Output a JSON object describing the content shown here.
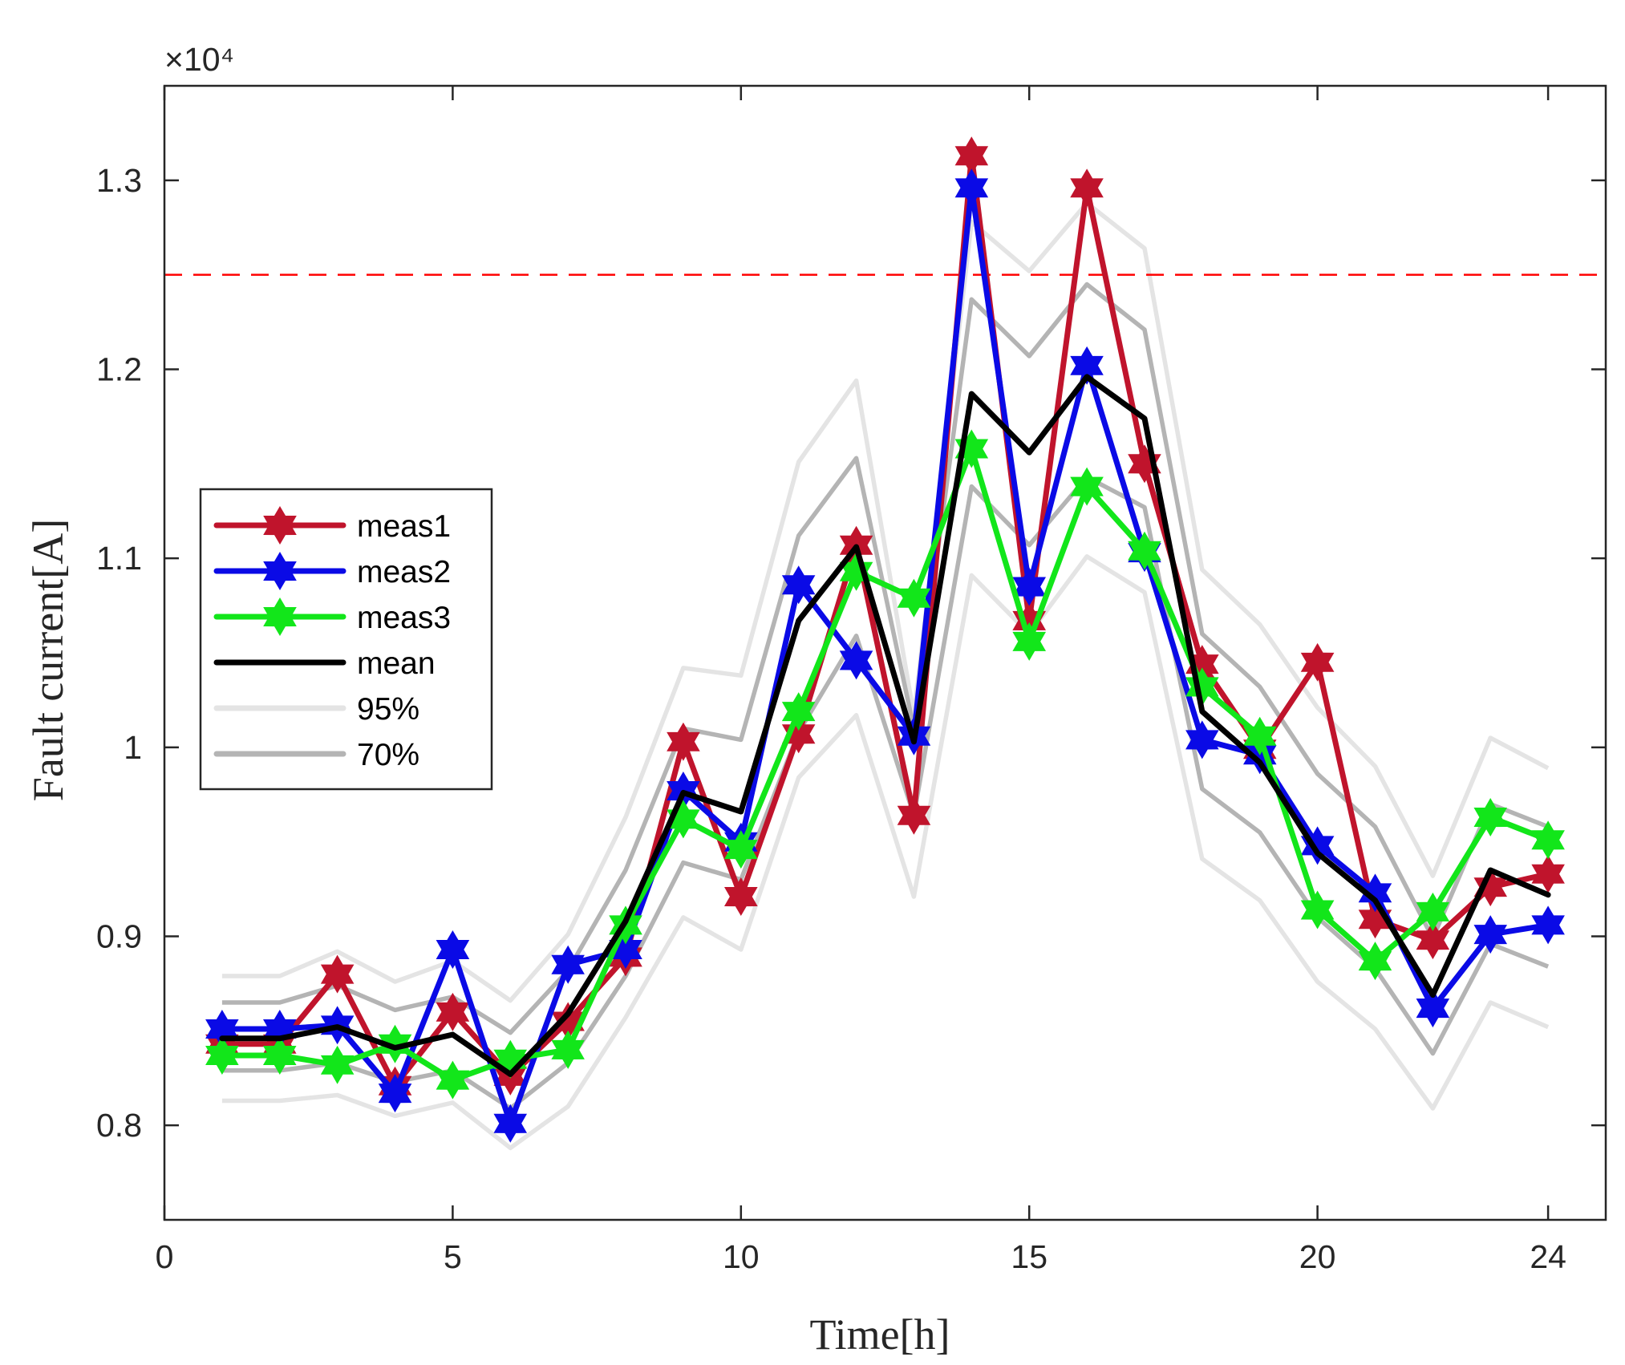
{
  "chart_data": {
    "type": "line",
    "xlabel": "Time[h]",
    "ylabel": "Fault current[A]",
    "y_exponent_label": "×10⁴",
    "xlim": [
      0,
      25
    ],
    "ylim": [
      7500,
      13500
    ],
    "xticks": [
      0,
      5,
      10,
      15,
      20,
      24
    ],
    "yticks": [
      8000,
      9000,
      10000,
      11000,
      12000,
      13000
    ],
    "ytick_labels": [
      "0.8",
      "0.9",
      "1",
      "1.1",
      "1.2",
      "1.3"
    ],
    "threshold": 12500,
    "x": [
      1,
      2,
      3,
      4,
      5,
      6,
      7,
      8,
      9,
      10,
      11,
      12,
      13,
      14,
      15,
      16,
      17,
      18,
      19,
      20,
      21,
      22,
      23,
      24
    ],
    "series": [
      {
        "name": "95%",
        "role": "band-upper",
        "color": "#e4e4e4",
        "values": [
          8790,
          8790,
          8920,
          8760,
          8870,
          8660,
          9010,
          9630,
          10420,
          10380,
          11510,
          11940,
          10170,
          12780,
          12520,
          12880,
          12640,
          10940,
          10650,
          10210,
          9900,
          9320,
          10050,
          9890
        ]
      },
      {
        "name": "95%",
        "role": "band-lower",
        "color": "#e4e4e4",
        "values": [
          8130,
          8130,
          8160,
          8050,
          8120,
          7880,
          8100,
          8570,
          9100,
          8930,
          9840,
          10170,
          9210,
          10910,
          10600,
          11010,
          10820,
          9410,
          9190,
          8760,
          8510,
          8090,
          8650,
          8520
        ]
      },
      {
        "name": "70%",
        "role": "band-upper",
        "color": "#b4b4b4",
        "values": [
          8650,
          8650,
          8740,
          8610,
          8680,
          8490,
          8820,
          9350,
          10100,
          10040,
          11120,
          11530,
          10100,
          12370,
          12070,
          12450,
          12210,
          10600,
          10320,
          9860,
          9580,
          8990,
          9700,
          9580
        ]
      },
      {
        "name": "70%",
        "role": "band-lower",
        "color": "#b4b4b4",
        "values": [
          8290,
          8290,
          8330,
          8230,
          8290,
          8090,
          8330,
          8790,
          9390,
          9300,
          10080,
          10590,
          9640,
          11380,
          11070,
          11430,
          11270,
          9780,
          9550,
          9100,
          8830,
          8380,
          8960,
          8840
        ]
      },
      {
        "name": "meas1",
        "color": "#c0142c",
        "marker": "star",
        "values": [
          8430,
          8430,
          8800,
          8210,
          8600,
          8260,
          8550,
          8890,
          10030,
          9210,
          10070,
          11070,
          9640,
          13130,
          10670,
          12960,
          11500,
          10440,
          9990,
          10450,
          9090,
          8980,
          9260,
          9330
        ]
      },
      {
        "name": "meas2",
        "color": "#0a0ae6",
        "marker": "star",
        "values": [
          8510,
          8510,
          8530,
          8170,
          8930,
          8010,
          8850,
          8930,
          9770,
          9500,
          10860,
          10460,
          10060,
          12960,
          10850,
          12020,
          11030,
          10040,
          9960,
          9480,
          9230,
          8620,
          9010,
          9060
        ]
      },
      {
        "name": "meas3",
        "color": "#12e61a",
        "marker": "star",
        "values": [
          8370,
          8370,
          8320,
          8430,
          8240,
          8350,
          8400,
          9060,
          9620,
          9460,
          10190,
          10930,
          10790,
          11580,
          10560,
          11380,
          11040,
          10320,
          10060,
          9140,
          8870,
          9130,
          9630,
          9510
        ]
      },
      {
        "name": "mean",
        "color": "#000000",
        "values": [
          8460,
          8460,
          8520,
          8410,
          8480,
          8270,
          8590,
          9080,
          9760,
          9660,
          10670,
          11060,
          10030,
          11870,
          11560,
          11960,
          11740,
          10190,
          9920,
          9440,
          9190,
          8690,
          9350,
          9220
        ]
      }
    ],
    "legend": {
      "position": "center-left",
      "entries": [
        {
          "label": "meas1",
          "color": "#c0142c",
          "marker": "star"
        },
        {
          "label": "meas2",
          "color": "#0a0ae6",
          "marker": "star"
        },
        {
          "label": "meas3",
          "color": "#12e61a",
          "marker": "star"
        },
        {
          "label": "mean",
          "color": "#000000",
          "marker": "none"
        },
        {
          "label": "95%",
          "color": "#e4e4e4",
          "marker": "none"
        },
        {
          "label": "70%",
          "color": "#b4b4b4",
          "marker": "none"
        }
      ]
    }
  }
}
